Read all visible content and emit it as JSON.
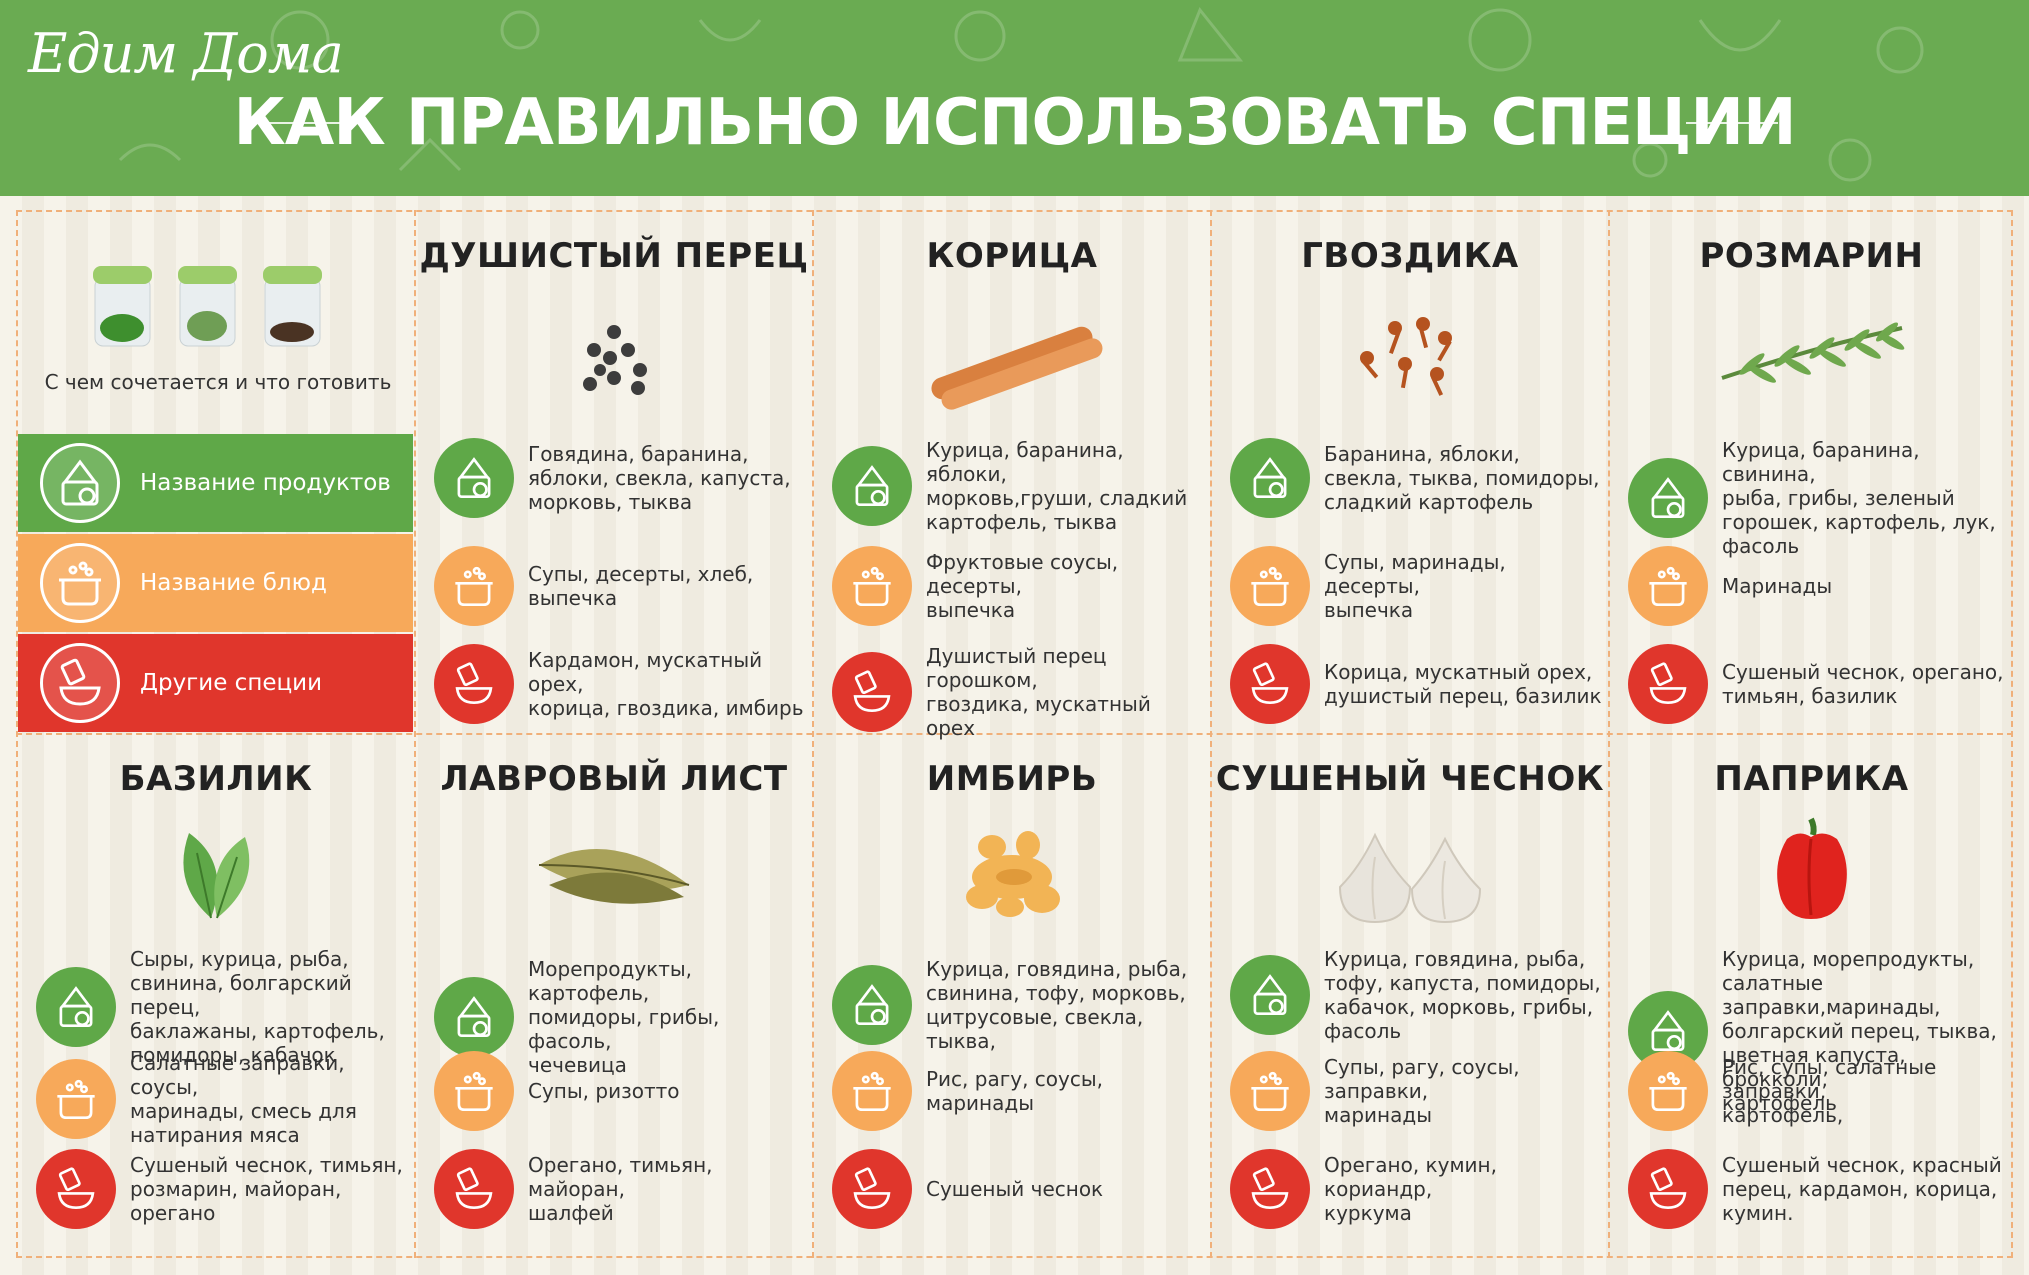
{
  "header": {
    "logo": "Едим Дома",
    "title": "КАК ПРАВИЛЬНО ИСПОЛЬЗОВАТЬ СПЕЦИИ"
  },
  "legend": {
    "caption": "С чем сочетается и что готовить",
    "items": [
      {
        "label": "Название продуктов",
        "color": "#5fa848",
        "icon": "ingredients-icon"
      },
      {
        "label": "Название блюд",
        "color": "#f7a95a",
        "icon": "pot-icon"
      },
      {
        "label": "Другие специи",
        "color": "#e0362c",
        "icon": "spice-icon"
      }
    ]
  },
  "spices": [
    {
      "name": "ДУШИСТЫЙ ПЕРЕЦ",
      "icon": "allspice-icon",
      "products": "Говядина, баранина,\nяблоки, свекла, капуста,\nморковь, тыква",
      "dishes": "Супы, десерты, хлеб,\nвыпечка",
      "other": "Кардамон, мускатный орех,\nкорица, гвоздика, имбирь"
    },
    {
      "name": "КОРИЦА",
      "icon": "cinnamon-icon",
      "products": "Курица, баранина, яблоки,\nморковь,груши, сладкий\nкартофель, тыква",
      "dishes": "Фруктовые соусы, десерты,\nвыпечка",
      "other": "Душистый перец горошком,\nгвоздика, мускатный орех"
    },
    {
      "name": "ГВОЗДИКА",
      "icon": "clove-icon",
      "products": "Баранина, яблоки,\nсвекла, тыква, помидоры,\nсладкий картофель",
      "dishes": "Супы, маринады, десерты,\nвыпечка",
      "other": "Корица, мускатный орех,\nдушистый перец, базилик"
    },
    {
      "name": "РОЗМАРИН",
      "icon": "rosemary-icon",
      "products": "Курица, баранина, свинина,\nрыба, грибы, зеленый\nгорошек, картофель, лук,\nфасоль",
      "dishes": "Маринады",
      "other": "Сушеный чеснок, орегано,\nтимьян, базилик"
    },
    {
      "name": "БАЗИЛИК",
      "icon": "basil-icon",
      "products": "Сыры, курица, рыба,\nсвинина, болгарский перец,\nбаклажаны, картофель,\nпомидоры, кабачок",
      "dishes": "Салатные заправки, соусы,\nмаринады, смесь для\nнатирания мяса",
      "other": "Сушеный чеснок, тимьян,\nрозмарин, майоран,\nорегано"
    },
    {
      "name": "ЛАВРОВЫЙ ЛИСТ",
      "icon": "bay-leaf-icon",
      "products": "Морепродукты, картофель,\nпомидоры, грибы, фасоль,\nчечевица",
      "dishes": "Супы, ризотто",
      "other": "Орегано, тимьян, майоран,\nшалфей"
    },
    {
      "name": "ИМБИРЬ",
      "icon": "ginger-icon",
      "products": "Курица, говядина, рыба,\nсвинина, тофу, морковь,\nцитрусовые, свекла, тыква,",
      "dishes": "Рис, рагу, соусы, маринады",
      "other": "Сушеный чеснок"
    },
    {
      "name": "СУШЕНЫЙ ЧЕСНОК",
      "icon": "garlic-icon",
      "products": "Курица, говядина, рыба,\nтофу, капуста, помидоры,\nкабачок, морковь, грибы,\nфасоль",
      "dishes": "Супы, рагу, соусы, заправки,\nмаринады",
      "other": "Орегано, кумин, кориандр,\nкуркума"
    },
    {
      "name": "ПАПРИКА",
      "icon": "paprika-icon",
      "products": "Курица, морепродукты,\nсалатные заправки,маринады,\nболгарский перец, тыква,\nцветная капуста, брокколи,\nкартофель",
      "dishes": "Рис, супы, салатные заправки,\nкартофель,",
      "other": "Сушеный чеснок, красный\nперец, кардамон, корица,\nкумин."
    }
  ]
}
